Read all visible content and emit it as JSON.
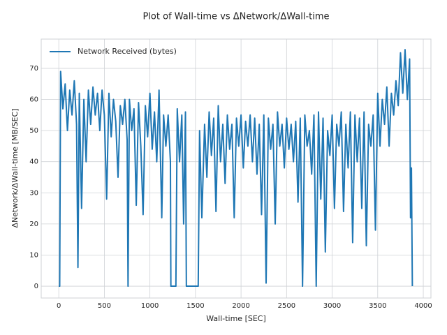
{
  "chart_data": {
    "type": "line",
    "title": "Plot of Wall-time vs ΔNetwork/ΔWall-time",
    "x_label": "Wall-time [SEC]",
    "y_label": "ΔNetwork/ΔWall-time [MB/SEC]",
    "x": [
      0,
      10,
      20,
      45,
      70,
      95,
      120,
      145,
      170,
      195,
      210,
      225,
      250,
      275,
      300,
      325,
      350,
      375,
      400,
      425,
      450,
      475,
      500,
      525,
      550,
      575,
      600,
      625,
      650,
      675,
      700,
      725,
      750,
      760,
      775,
      800,
      825,
      850,
      875,
      900,
      925,
      950,
      975,
      1000,
      1025,
      1050,
      1075,
      1100,
      1130,
      1150,
      1175,
      1200,
      1225,
      1230,
      1285,
      1300,
      1325,
      1350,
      1370,
      1390,
      1400,
      1530,
      1545,
      1570,
      1600,
      1625,
      1650,
      1675,
      1700,
      1725,
      1750,
      1775,
      1800,
      1825,
      1850,
      1875,
      1900,
      1925,
      1950,
      1975,
      2000,
      2025,
      2050,
      2075,
      2100,
      2125,
      2150,
      2175,
      2200,
      2225,
      2250,
      2275,
      2300,
      2325,
      2350,
      2375,
      2400,
      2425,
      2450,
      2475,
      2500,
      2525,
      2550,
      2575,
      2600,
      2625,
      2650,
      2675,
      2700,
      2725,
      2750,
      2775,
      2800,
      2825,
      2850,
      2875,
      2900,
      2925,
      2950,
      2975,
      3000,
      3025,
      3050,
      3075,
      3100,
      3125,
      3150,
      3175,
      3200,
      3225,
      3250,
      3275,
      3300,
      3325,
      3350,
      3375,
      3400,
      3425,
      3450,
      3475,
      3500,
      3525,
      3550,
      3575,
      3600,
      3625,
      3650,
      3675,
      3700,
      3725,
      3750,
      3775,
      3800,
      3825,
      3850,
      3860,
      3870,
      3880
    ],
    "series": [
      {
        "name": "Network Received (bytes)",
        "color": "#1f77b4",
        "values": [
          0,
          0,
          69,
          57,
          65,
          50,
          63,
          55,
          66,
          52,
          6,
          62,
          25,
          60,
          40,
          63,
          52,
          64,
          55,
          62,
          50,
          63,
          55,
          28,
          62,
          48,
          60,
          53,
          35,
          58,
          52,
          60,
          47,
          0,
          60,
          50,
          57,
          26,
          59,
          45,
          23,
          58,
          48,
          62,
          44,
          56,
          40,
          63,
          22,
          55,
          45,
          55,
          40,
          0,
          0,
          57,
          40,
          55,
          20,
          56,
          0,
          0,
          50,
          22,
          52,
          35,
          56,
          42,
          54,
          24,
          58,
          40,
          52,
          33,
          55,
          44,
          52,
          22,
          54,
          45,
          55,
          38,
          53,
          45,
          55,
          40,
          54,
          36,
          52,
          23,
          55,
          1,
          54,
          44,
          52,
          20,
          56,
          45,
          52,
          38,
          54,
          44,
          52,
          40,
          53,
          27,
          54,
          0,
          55,
          45,
          50,
          36,
          55,
          0,
          56,
          28,
          54,
          11,
          50,
          42,
          55,
          25,
          52,
          45,
          56,
          24,
          52,
          38,
          56,
          14,
          55,
          40,
          54,
          25,
          56,
          13,
          52,
          45,
          55,
          18,
          62,
          45,
          60,
          52,
          64,
          45,
          62,
          55,
          66,
          58,
          75,
          62,
          76,
          60,
          73,
          22,
          38,
          0
        ]
      }
    ],
    "xlim": [
      -193,
      4084
    ],
    "ylim": [
      -3.8,
      79.4
    ],
    "xticks": [
      0,
      500,
      1000,
      1500,
      2000,
      2500,
      3000,
      3500,
      4000
    ],
    "yticks": [
      0,
      10,
      20,
      30,
      40,
      50,
      60,
      70
    ],
    "grid": true,
    "legend": "upper left"
  }
}
